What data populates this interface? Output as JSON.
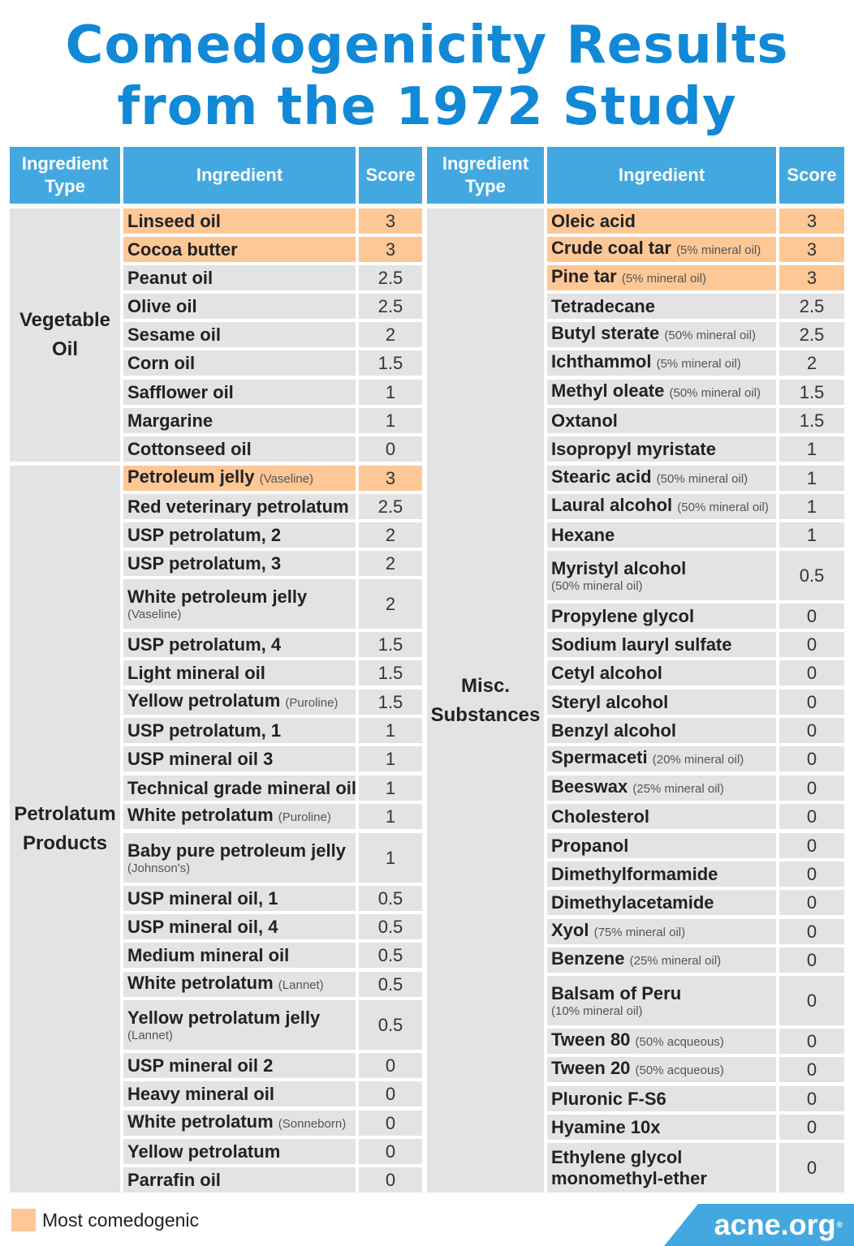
{
  "title": {
    "line1": "Comedogenicity Results",
    "line2": "from the 1972 Study"
  },
  "colors": {
    "header": "#44a8e0",
    "title": "#1189d6",
    "highlight": "#fdc796",
    "cell": "#e3e3e3"
  },
  "headers": {
    "type_line1": "Ingredient",
    "type_line2": "Type",
    "ingredient": "Ingredient",
    "score": "Score"
  },
  "left_groups": [
    {
      "line1": "Vegetable",
      "line2": "Oil"
    },
    {
      "line1": "Petrolatum",
      "line2": "Products"
    }
  ],
  "right_group": {
    "line1": "Misc.",
    "line2": "Substances"
  },
  "left_rows": [
    {
      "name": "Linseed oil",
      "note": "",
      "score": "3",
      "highlight": true
    },
    {
      "name": "Cocoa butter",
      "note": "",
      "score": "3",
      "highlight": true
    },
    {
      "name": "Peanut oil",
      "note": "",
      "score": "2.5",
      "highlight": false
    },
    {
      "name": "Olive oil",
      "note": "",
      "score": "2.5",
      "highlight": false
    },
    {
      "name": "Sesame oil",
      "note": "",
      "score": "2",
      "highlight": false
    },
    {
      "name": "Corn oil",
      "note": "",
      "score": "1.5",
      "highlight": false
    },
    {
      "name": "Safflower oil",
      "note": "",
      "score": "1",
      "highlight": false
    },
    {
      "name": "Margarine",
      "note": "",
      "score": "1",
      "highlight": false
    },
    {
      "name": "Cottonseed oil",
      "note": "",
      "score": "0",
      "highlight": false
    },
    {
      "name": "Petroleum jelly",
      "note": "(Vaseline)",
      "score": "3",
      "highlight": true
    },
    {
      "name": "Red veterinary petrolatum",
      "note": "",
      "score": "2.5",
      "highlight": false
    },
    {
      "name": "USP petrolatum, 2",
      "note": "",
      "score": "2",
      "highlight": false
    },
    {
      "name": "USP petrolatum, 3",
      "note": "",
      "score": "2",
      "highlight": false
    },
    {
      "name": "White petroleum jelly",
      "note": "(Vaseline)",
      "score": "2",
      "highlight": false,
      "wrap": true
    },
    {
      "name": "USP petrolatum, 4",
      "note": "",
      "score": "1.5",
      "highlight": false
    },
    {
      "name": "Light mineral oil",
      "note": "",
      "score": "1.5",
      "highlight": false
    },
    {
      "name": "Yellow petrolatum",
      "note": "(Puroline)",
      "score": "1.5",
      "highlight": false
    },
    {
      "name": "USP petrolatum, 1",
      "note": "",
      "score": "1",
      "highlight": false
    },
    {
      "name": "USP mineral oil 3",
      "note": "",
      "score": "1",
      "highlight": false
    },
    {
      "name": "Technical grade mineral oil",
      "note": "",
      "score": "1",
      "highlight": false
    },
    {
      "name": "White petrolatum",
      "note": "(Puroline)",
      "score": "1",
      "highlight": false
    },
    {
      "name": "Baby pure petroleum jelly",
      "note": "(Johnson's)",
      "score": "1",
      "highlight": false,
      "wrap": true
    },
    {
      "name": "USP mineral oil, 1",
      "note": "",
      "score": "0.5",
      "highlight": false
    },
    {
      "name": "USP mineral oil, 4",
      "note": "",
      "score": "0.5",
      "highlight": false
    },
    {
      "name": "Medium mineral oil",
      "note": "",
      "score": "0.5",
      "highlight": false
    },
    {
      "name": "White petrolatum",
      "note": "(Lannet)",
      "score": "0.5",
      "highlight": false
    },
    {
      "name": "Yellow petrolatum jelly",
      "note": "(Lannet)",
      "score": "0.5",
      "highlight": false,
      "wrap": true
    },
    {
      "name": "USP mineral oil 2",
      "note": "",
      "score": "0",
      "highlight": false
    },
    {
      "name": "Heavy mineral oil",
      "note": "",
      "score": "0",
      "highlight": false
    },
    {
      "name": "White petrolatum",
      "note": "(Sonneborn)",
      "score": "0",
      "highlight": false
    },
    {
      "name": "Yellow petrolatum",
      "note": "",
      "score": "0",
      "highlight": false
    },
    {
      "name": "Parrafin oil",
      "note": "",
      "score": "0",
      "highlight": false
    }
  ],
  "right_rows": [
    {
      "name": "Oleic acid",
      "note": "",
      "score": "3",
      "highlight": true
    },
    {
      "name": "Crude coal tar",
      "note": "(5% mineral oil)",
      "score": "3",
      "highlight": true
    },
    {
      "name": "Pine tar",
      "note": "(5% mineral oil)",
      "score": "3",
      "highlight": true
    },
    {
      "name": "Tetradecane",
      "note": "",
      "score": "2.5",
      "highlight": false
    },
    {
      "name": "Butyl sterate",
      "note": "(50% mineral oil)",
      "score": "2.5",
      "highlight": false
    },
    {
      "name": "Ichthammol",
      "note": "(5% mineral oil)",
      "score": "2",
      "highlight": false
    },
    {
      "name": "Methyl oleate",
      "note": "(50% mineral oil)",
      "score": "1.5",
      "highlight": false
    },
    {
      "name": "Oxtanol",
      "note": "",
      "score": "1.5",
      "highlight": false
    },
    {
      "name": "Isopropyl myristate",
      "note": "",
      "score": "1",
      "highlight": false
    },
    {
      "name": "Stearic acid",
      "note": "(50% mineral oil)",
      "score": "1",
      "highlight": false
    },
    {
      "name": "Laural alcohol",
      "note": "(50% mineral oil)",
      "score": "1",
      "highlight": false
    },
    {
      "name": "Hexane",
      "note": "",
      "score": "1",
      "highlight": false
    },
    {
      "name": "Myristyl alcohol",
      "note": "(50% mineral oil)",
      "score": "0.5",
      "highlight": false,
      "wrap": true
    },
    {
      "name": "Propylene glycol",
      "note": "",
      "score": "0",
      "highlight": false
    },
    {
      "name": "Sodium lauryl sulfate",
      "note": "",
      "score": "0",
      "highlight": false
    },
    {
      "name": "Cetyl alcohol",
      "note": "",
      "score": "0",
      "highlight": false
    },
    {
      "name": "Steryl alcohol",
      "note": "",
      "score": "0",
      "highlight": false
    },
    {
      "name": "Benzyl alcohol",
      "note": "",
      "score": "0",
      "highlight": false
    },
    {
      "name": "Spermaceti",
      "note": "(20% mineral oil)",
      "score": "0",
      "highlight": false
    },
    {
      "name": "Beeswax",
      "note": "(25% mineral oil)",
      "score": "0",
      "highlight": false
    },
    {
      "name": "Cholesterol",
      "note": "",
      "score": "0",
      "highlight": false
    },
    {
      "name": "Propanol",
      "note": "",
      "score": "0",
      "highlight": false
    },
    {
      "name": "Dimethylformamide",
      "note": "",
      "score": "0",
      "highlight": false
    },
    {
      "name": "Dimethylacetamide",
      "note": "",
      "score": "0",
      "highlight": false
    },
    {
      "name": "Xyol",
      "note": "(75% mineral oil)",
      "score": "0",
      "highlight": false
    },
    {
      "name": "Benzene",
      "note": "(25% mineral oil)",
      "score": "0",
      "highlight": false
    },
    {
      "name": "Balsam of Peru",
      "note": "(10% mineral oil)",
      "score": "0",
      "highlight": false,
      "wrap": true
    },
    {
      "name": "Tween 80",
      "note": "(50% acqueous)",
      "score": "0",
      "highlight": false
    },
    {
      "name": "Tween 20",
      "note": "(50% acqueous)",
      "score": "0",
      "highlight": false
    },
    {
      "name": "Pluronic F-S6",
      "note": "",
      "score": "0",
      "highlight": false
    },
    {
      "name": "Hyamine 10x",
      "note": "",
      "score": "0",
      "highlight": false
    },
    {
      "name": "Ethylene glycol monomethyl-ether",
      "line1": "Ethylene glycol",
      "line2": "monomethyl-ether",
      "note": "",
      "score": "0",
      "highlight": false,
      "twoline": true
    }
  ],
  "legend": {
    "label": "Most comedogenic"
  },
  "brand": {
    "name": "acne.org",
    "mark": "®"
  }
}
